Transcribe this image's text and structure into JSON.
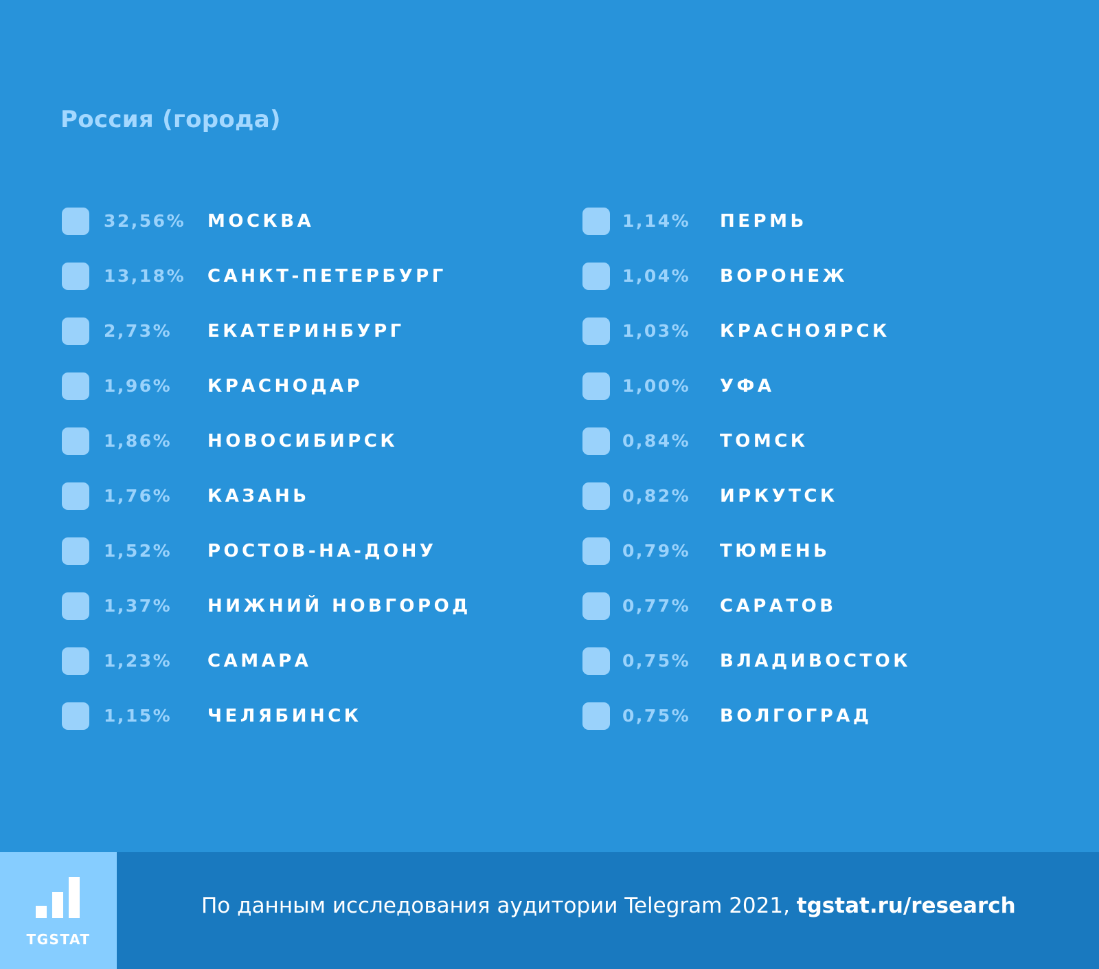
{
  "colors": {
    "background": "#2893da",
    "title": "#a4d8ff",
    "swatch": "#9ad2fb",
    "percent": "#9ad2fb",
    "city": "#ffffff",
    "footer": "#1979bf",
    "logo_box": "#86cdff"
  },
  "title": "Россия (города)",
  "chart_data": {
    "type": "table",
    "title": "Россия (города)",
    "unit": "%",
    "columns": [
      {
        "items": [
          {
            "value": 32.56,
            "label": "32,56%",
            "city": "МОСКВА"
          },
          {
            "value": 13.18,
            "label": "13,18%",
            "city": "САНКТ-ПЕТЕРБУРГ"
          },
          {
            "value": 2.73,
            "label": "2,73%",
            "city": "ЕКАТЕРИНБУРГ"
          },
          {
            "value": 1.96,
            "label": "1,96%",
            "city": "КРАСНОДАР"
          },
          {
            "value": 1.86,
            "label": "1,86%",
            "city": "НОВОСИБИРСК"
          },
          {
            "value": 1.76,
            "label": "1,76%",
            "city": "КАЗАНЬ"
          },
          {
            "value": 1.52,
            "label": "1,52%",
            "city": "РОСТОВ-НА-ДОНУ"
          },
          {
            "value": 1.37,
            "label": "1,37%",
            "city": "НИЖНИЙ НОВГОРОД"
          },
          {
            "value": 1.23,
            "label": "1,23%",
            "city": "САМАРА"
          },
          {
            "value": 1.15,
            "label": "1,15%",
            "city": "ЧЕЛЯБИНСК"
          }
        ]
      },
      {
        "items": [
          {
            "value": 1.14,
            "label": "1,14%",
            "city": "ПЕРМЬ"
          },
          {
            "value": 1.04,
            "label": "1,04%",
            "city": "ВОРОНЕЖ"
          },
          {
            "value": 1.03,
            "label": "1,03%",
            "city": "КРАСНОЯРСК"
          },
          {
            "value": 1.0,
            "label": "1,00%",
            "city": "УФА"
          },
          {
            "value": 0.84,
            "label": "0,84%",
            "city": "ТОМСК"
          },
          {
            "value": 0.82,
            "label": "0,82%",
            "city": "ИРКУТСК"
          },
          {
            "value": 0.79,
            "label": "0,79%",
            "city": "ТЮМЕНЬ"
          },
          {
            "value": 0.77,
            "label": "0,77%",
            "city": "САРАТОВ"
          },
          {
            "value": 0.75,
            "label": "0,75%",
            "city": "ВЛАДИВОСТОК"
          },
          {
            "value": 0.75,
            "label": "0,75%",
            "city": "ВОЛГОГРАД"
          }
        ]
      }
    ]
  },
  "footer": {
    "logo_text": "TGSTAT",
    "logo_icon": "bar-chart-icon",
    "text": "По данным исследования аудитории Telegram 2021, ",
    "link": "tgstat.ru/research"
  }
}
